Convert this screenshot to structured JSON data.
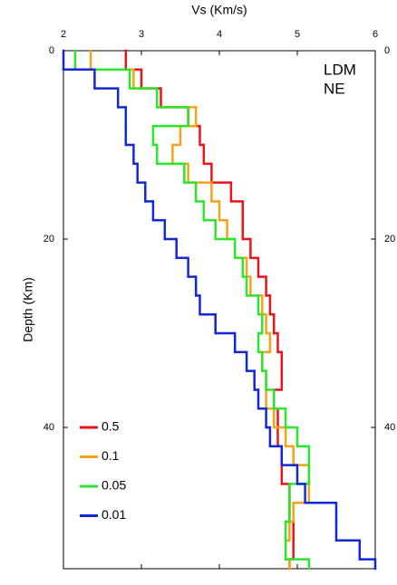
{
  "chart_data": {
    "type": "step",
    "x_label": "Vs (Km/s)",
    "y_label": "Depth (Km)",
    "annotation": [
      "LDM",
      "NE"
    ],
    "xlim": [
      2,
      6
    ],
    "xticks": [
      2,
      3,
      4,
      5,
      6
    ],
    "ylim": [
      0,
      55
    ],
    "yticks": [
      0,
      20,
      40
    ],
    "y_inverted": true,
    "legend": "lower left",
    "depths": [
      0,
      2,
      4,
      6,
      8,
      10,
      12,
      14,
      16,
      18,
      20,
      22,
      24,
      26,
      28,
      30,
      32,
      34,
      36,
      38,
      40,
      42,
      44,
      46,
      48,
      50,
      52,
      54,
      55
    ],
    "series": [
      {
        "name": "0.5",
        "color": "#e8131b",
        "values": [
          2.8,
          3.0,
          3.25,
          3.6,
          3.75,
          3.8,
          3.9,
          4.15,
          4.3,
          4.3,
          4.4,
          4.5,
          4.6,
          4.65,
          4.7,
          4.75,
          4.8,
          4.8,
          4.7,
          4.75,
          4.75,
          4.8,
          4.8,
          4.9,
          4.9,
          4.95,
          4.95,
          4.9
        ]
      },
      {
        "name": "0.1",
        "color": "#f5a316",
        "values": [
          2.35,
          2.9,
          3.2,
          3.7,
          3.5,
          3.4,
          3.6,
          3.9,
          4.0,
          4.1,
          4.2,
          4.35,
          4.4,
          4.55,
          4.6,
          4.65,
          4.55,
          4.6,
          4.6,
          4.7,
          4.85,
          4.95,
          5.15,
          5.15,
          4.95,
          4.9,
          4.85,
          4.9
        ]
      },
      {
        "name": "0.05",
        "color": "#2ee52e",
        "values": [
          2.15,
          2.85,
          3.2,
          3.6,
          3.15,
          3.2,
          3.55,
          3.7,
          3.8,
          3.95,
          4.2,
          4.3,
          4.35,
          4.5,
          4.55,
          4.5,
          4.55,
          4.6,
          4.7,
          4.85,
          5.0,
          5.15,
          5.15,
          4.9,
          4.9,
          4.85,
          4.85,
          5.15
        ]
      },
      {
        "name": "0.01",
        "color": "#1228d8",
        "values": [
          2.0,
          2.4,
          2.7,
          2.8,
          2.8,
          2.9,
          2.95,
          3.05,
          3.15,
          3.3,
          3.45,
          3.6,
          3.7,
          3.75,
          3.95,
          4.2,
          4.35,
          4.45,
          4.5,
          4.6,
          4.65,
          4.8,
          5.0,
          5.1,
          5.5,
          5.5,
          5.8,
          6.0
        ]
      }
    ]
  }
}
